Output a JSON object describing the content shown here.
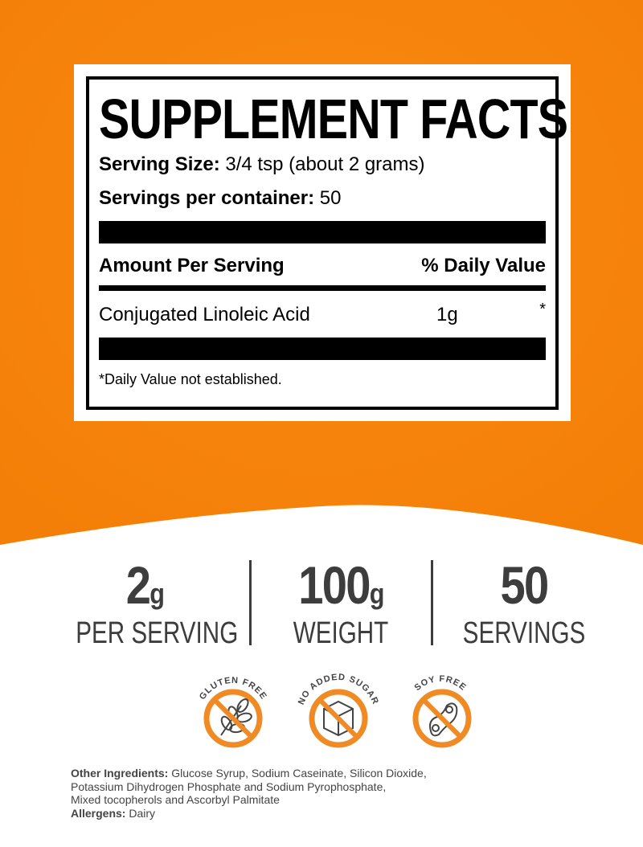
{
  "colors": {
    "orange": "#f7860f",
    "badge": "#f08a24",
    "text": "#3d3d3d"
  },
  "facts": {
    "title": "SUPPLEMENT FACTS",
    "serving_size_label": "Serving Size:",
    "serving_size_value": " 3/4 tsp (about 2 grams)",
    "servings_label": "Servings per container:",
    "servings_value": " 50",
    "amount_header": "Amount Per Serving",
    "dv_header": "% Daily Value",
    "ingredient": {
      "name": "Conjugated Linoleic Acid",
      "amount": "1g",
      "dv": "*"
    },
    "footnote": "*Daily Value not established."
  },
  "stats": [
    {
      "value": "2",
      "unit": "g",
      "label": "PER SERVING"
    },
    {
      "value": "100",
      "unit": "g",
      "label": "WEIGHT"
    },
    {
      "value": "50",
      "unit": "",
      "label": "SERVINGS"
    }
  ],
  "badges": [
    {
      "label": "GLUTEN FREE",
      "icon": "wheat-icon"
    },
    {
      "label": "NO ADDED SUGAR",
      "icon": "sugar-cube-icon"
    },
    {
      "label": "SOY FREE",
      "icon": "soybean-icon"
    }
  ],
  "other_ingredients": {
    "label": "Other Ingredients:",
    "line1": " Glucose Syrup,  Sodium Caseinate, Silicon Dioxide,",
    "line2": " Potassium Dihydrogen Phosphate and  Sodium Pyrophosphate,",
    "line3": "Mixed tocopherols  and Ascorbyl Palmitate"
  },
  "allergens": {
    "label": "Allergens:",
    "value": " Dairy"
  }
}
